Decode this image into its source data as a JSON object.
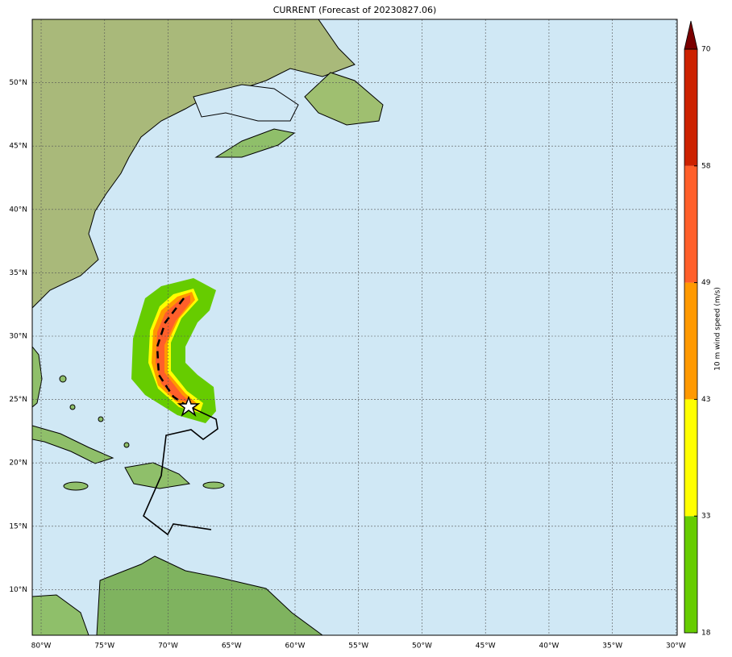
{
  "map": {
    "title": "CURRENT (Forecast of 20230827.06)",
    "lon_range": [
      -80.7,
      -29.9
    ],
    "lat_range": [
      55.0,
      6.4
    ],
    "lat_ticks": [
      {
        "value": 10,
        "label": "10°N"
      },
      {
        "value": 15,
        "label": "15°N"
      },
      {
        "value": 20,
        "label": "20°N"
      },
      {
        "value": 25,
        "label": "25°N"
      },
      {
        "value": 30,
        "label": "30°N"
      },
      {
        "value": 35,
        "label": "35°N"
      },
      {
        "value": 40,
        "label": "40°N"
      },
      {
        "value": 45,
        "label": "45°N"
      },
      {
        "value": 50,
        "label": "50°N"
      }
    ],
    "lon_ticks": [
      {
        "value": -80,
        "label": "80°W"
      },
      {
        "value": -75,
        "label": "75°W"
      },
      {
        "value": -70,
        "label": "70°W"
      },
      {
        "value": -65,
        "label": "65°W"
      },
      {
        "value": -60,
        "label": "60°W"
      },
      {
        "value": -55,
        "label": "55°W"
      },
      {
        "value": -50,
        "label": "50°W"
      },
      {
        "value": -45,
        "label": "45°W"
      },
      {
        "value": -40,
        "label": "40°W"
      },
      {
        "value": -35,
        "label": "35°W"
      },
      {
        "value": -30,
        "label": "30°W"
      }
    ]
  },
  "colorbar": {
    "label": "10 m wind speed (m/s)",
    "ticks": [
      18,
      33,
      43,
      49,
      58,
      70
    ],
    "colors": [
      "#66cc00",
      "#ffff00",
      "#ff9900",
      "#ff5f2a",
      "#cc2200"
    ],
    "extend_color": "#7a0000"
  }
}
